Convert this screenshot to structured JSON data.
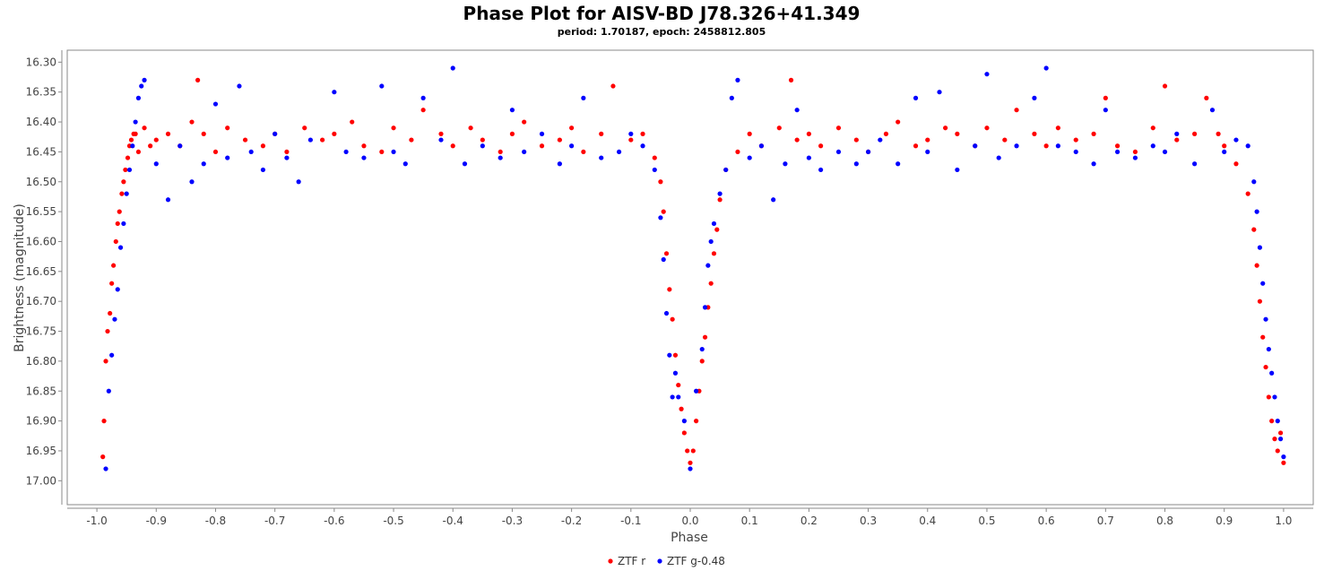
{
  "chart_data": {
    "type": "scatter",
    "title": "Phase Plot for AISV-BD J78.326+41.349",
    "subtitle": "period: 1.70187, epoch: 2458812.805",
    "xlabel": "Phase",
    "ylabel": "Brightness (magnitude)",
    "xlim": [
      -1.05,
      1.05
    ],
    "ylim": [
      16.28,
      17.04
    ],
    "y_inverted": true,
    "grid": false,
    "legend_position": "bottom-center",
    "x_ticks": [
      "-1.0",
      "-0.9",
      "-0.8",
      "-0.7",
      "-0.6",
      "-0.5",
      "-0.4",
      "-0.3",
      "-0.2",
      "-0.1",
      "0.0",
      "0.1",
      "0.2",
      "0.3",
      "0.4",
      "0.5",
      "0.6",
      "0.7",
      "0.8",
      "0.9",
      "1.0"
    ],
    "y_ticks": [
      "16.30",
      "16.35",
      "16.40",
      "16.45",
      "16.50",
      "16.55",
      "16.60",
      "16.65",
      "16.70",
      "16.75",
      "16.80",
      "16.85",
      "16.90",
      "16.95",
      "17.00"
    ],
    "series": [
      {
        "name": "ZTF r",
        "color": "#ff0000",
        "x": [
          -0.99,
          -0.988,
          -0.985,
          -0.982,
          -0.978,
          -0.975,
          -0.972,
          -0.968,
          -0.965,
          -0.962,
          -0.958,
          -0.955,
          -0.952,
          -0.948,
          -0.945,
          -0.942,
          -0.938,
          -0.935,
          -0.93,
          -0.92,
          -0.91,
          -0.9,
          -0.88,
          -0.86,
          -0.84,
          -0.83,
          -0.82,
          -0.8,
          -0.78,
          -0.75,
          -0.72,
          -0.7,
          -0.68,
          -0.65,
          -0.62,
          -0.6,
          -0.57,
          -0.55,
          -0.52,
          -0.5,
          -0.47,
          -0.45,
          -0.42,
          -0.4,
          -0.37,
          -0.35,
          -0.32,
          -0.3,
          -0.28,
          -0.25,
          -0.22,
          -0.2,
          -0.18,
          -0.15,
          -0.13,
          -0.1,
          -0.08,
          -0.06,
          -0.05,
          -0.045,
          -0.04,
          -0.035,
          -0.03,
          -0.025,
          -0.02,
          -0.015,
          -0.01,
          -0.005,
          0.0,
          0.005,
          0.01,
          0.015,
          0.02,
          0.025,
          0.03,
          0.035,
          0.04,
          0.045,
          0.05,
          0.06,
          0.08,
          0.1,
          0.12,
          0.15,
          0.17,
          0.18,
          0.2,
          0.22,
          0.25,
          0.28,
          0.3,
          0.33,
          0.35,
          0.38,
          0.4,
          0.43,
          0.45,
          0.48,
          0.5,
          0.53,
          0.55,
          0.58,
          0.6,
          0.62,
          0.65,
          0.68,
          0.7,
          0.72,
          0.75,
          0.78,
          0.8,
          0.82,
          0.85,
          0.87,
          0.89,
          0.9,
          0.92,
          0.94,
          0.95,
          0.955,
          0.96,
          0.965,
          0.97,
          0.975,
          0.98,
          0.985,
          0.99,
          0.995,
          1.0
        ],
        "y": [
          16.96,
          16.9,
          16.8,
          16.75,
          16.72,
          16.67,
          16.64,
          16.6,
          16.57,
          16.55,
          16.52,
          16.5,
          16.48,
          16.46,
          16.44,
          16.43,
          16.42,
          16.42,
          16.45,
          16.41,
          16.44,
          16.43,
          16.42,
          16.44,
          16.4,
          16.33,
          16.42,
          16.45,
          16.41,
          16.43,
          16.44,
          16.42,
          16.45,
          16.41,
          16.43,
          16.42,
          16.4,
          16.44,
          16.45,
          16.41,
          16.43,
          16.38,
          16.42,
          16.44,
          16.41,
          16.43,
          16.45,
          16.42,
          16.4,
          16.44,
          16.43,
          16.41,
          16.45,
          16.42,
          16.34,
          16.43,
          16.42,
          16.46,
          16.5,
          16.55,
          16.62,
          16.68,
          16.73,
          16.79,
          16.84,
          16.88,
          16.92,
          16.95,
          16.97,
          16.95,
          16.9,
          16.85,
          16.8,
          16.76,
          16.71,
          16.67,
          16.62,
          16.58,
          16.53,
          16.48,
          16.45,
          16.42,
          16.44,
          16.41,
          16.33,
          16.43,
          16.42,
          16.44,
          16.41,
          16.43,
          16.45,
          16.42,
          16.4,
          16.44,
          16.43,
          16.41,
          16.42,
          16.44,
          16.41,
          16.43,
          16.38,
          16.42,
          16.44,
          16.41,
          16.43,
          16.42,
          16.36,
          16.44,
          16.45,
          16.41,
          16.34,
          16.43,
          16.42,
          16.36,
          16.42,
          16.44,
          16.47,
          16.52,
          16.58,
          16.64,
          16.7,
          16.76,
          16.81,
          16.86,
          16.9,
          16.93,
          16.95,
          16.92,
          16.97
        ]
      },
      {
        "name": "ZTF g-0.48",
        "color": "#0000ff",
        "x": [
          -0.985,
          -0.98,
          -0.975,
          -0.97,
          -0.965,
          -0.96,
          -0.955,
          -0.95,
          -0.945,
          -0.94,
          -0.935,
          -0.93,
          -0.925,
          -0.92,
          -0.9,
          -0.88,
          -0.86,
          -0.84,
          -0.82,
          -0.8,
          -0.78,
          -0.76,
          -0.74,
          -0.72,
          -0.7,
          -0.68,
          -0.66,
          -0.64,
          -0.6,
          -0.58,
          -0.55,
          -0.52,
          -0.5,
          -0.48,
          -0.45,
          -0.42,
          -0.4,
          -0.38,
          -0.35,
          -0.32,
          -0.3,
          -0.28,
          -0.25,
          -0.22,
          -0.2,
          -0.18,
          -0.15,
          -0.12,
          -0.1,
          -0.08,
          -0.06,
          -0.05,
          -0.045,
          -0.04,
          -0.035,
          -0.03,
          -0.025,
          -0.02,
          -0.01,
          0.0,
          0.01,
          0.02,
          0.025,
          0.03,
          0.035,
          0.04,
          0.05,
          0.06,
          0.07,
          0.08,
          0.1,
          0.12,
          0.14,
          0.16,
          0.18,
          0.2,
          0.22,
          0.25,
          0.28,
          0.3,
          0.32,
          0.35,
          0.38,
          0.4,
          0.42,
          0.45,
          0.48,
          0.5,
          0.52,
          0.55,
          0.58,
          0.6,
          0.62,
          0.65,
          0.68,
          0.7,
          0.72,
          0.75,
          0.78,
          0.8,
          0.82,
          0.85,
          0.88,
          0.9,
          0.92,
          0.94,
          0.95,
          0.955,
          0.96,
          0.965,
          0.97,
          0.975,
          0.98,
          0.985,
          0.99,
          0.995,
          1.0
        ],
        "y": [
          16.98,
          16.85,
          16.79,
          16.73,
          16.68,
          16.61,
          16.57,
          16.52,
          16.48,
          16.44,
          16.4,
          16.36,
          16.34,
          16.33,
          16.47,
          16.53,
          16.44,
          16.5,
          16.47,
          16.37,
          16.46,
          16.34,
          16.45,
          16.48,
          16.42,
          16.46,
          16.5,
          16.43,
          16.35,
          16.45,
          16.46,
          16.34,
          16.45,
          16.47,
          16.36,
          16.43,
          16.31,
          16.47,
          16.44,
          16.46,
          16.38,
          16.45,
          16.42,
          16.47,
          16.44,
          16.36,
          16.46,
          16.45,
          16.42,
          16.44,
          16.48,
          16.56,
          16.63,
          16.72,
          16.79,
          16.86,
          16.82,
          16.86,
          16.9,
          16.98,
          16.85,
          16.78,
          16.71,
          16.64,
          16.6,
          16.57,
          16.52,
          16.48,
          16.36,
          16.33,
          16.46,
          16.44,
          16.53,
          16.47,
          16.38,
          16.46,
          16.48,
          16.45,
          16.47,
          16.45,
          16.43,
          16.47,
          16.36,
          16.45,
          16.35,
          16.48,
          16.44,
          16.32,
          16.46,
          16.44,
          16.36,
          16.31,
          16.44,
          16.45,
          16.47,
          16.38,
          16.45,
          16.46,
          16.44,
          16.45,
          16.42,
          16.47,
          16.38,
          16.45,
          16.43,
          16.44,
          16.5,
          16.55,
          16.61,
          16.67,
          16.73,
          16.78,
          16.82,
          16.86,
          16.9,
          16.93,
          16.96
        ]
      }
    ]
  }
}
